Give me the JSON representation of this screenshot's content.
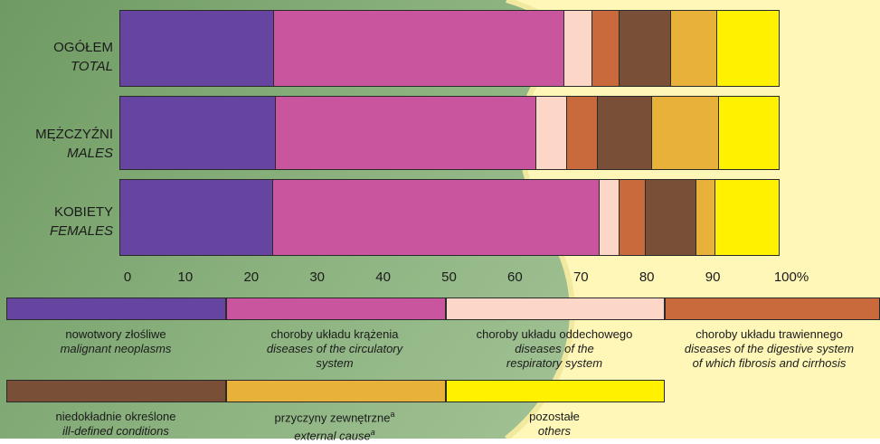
{
  "chart_data": {
    "type": "bar",
    "orientation": "horizontal",
    "stacked": true,
    "categories": [
      {
        "pl": "OGÓŁEM",
        "en": "TOTAL"
      },
      {
        "pl": "MĘŻCZYŹNI",
        "en": "MALES"
      },
      {
        "pl": "KOBIETY",
        "en": "FEMALES"
      }
    ],
    "x_ticks": [
      "0",
      "10",
      "20",
      "30",
      "40",
      "50",
      "60",
      "70",
      "80",
      "90",
      "100%"
    ],
    "xlim": [
      0,
      100
    ],
    "series": [
      {
        "pl": "nowotwory złośliwe",
        "en": "malignant neoplasms",
        "color": "#6645a0",
        "values": [
          23.3,
          23.6,
          23.1
        ]
      },
      {
        "pl": "choroby układu krążenia",
        "en": "diseases of the circulatory system",
        "color": "#c9559f",
        "values": [
          44.1,
          39.5,
          49.2
        ]
      },
      {
        "pl": "choroby układu oddechowego",
        "en": "diseases of the respiratory system",
        "color": "#fcd7c7",
        "values": [
          4.2,
          4.7,
          3.1
        ]
      },
      {
        "pl": "choroby układu trawiennego",
        "en": "diseases of the digestive system of which fibrosis and cirrhosis",
        "color": "#c86a3c",
        "values": [
          4.1,
          4.6,
          3.9
        ]
      },
      {
        "pl": "niedokładnie określone",
        "en": "ill-defined conditions",
        "color": "#7a4f37",
        "values": [
          7.8,
          8.2,
          7.7
        ]
      },
      {
        "pl": "przyczyny zewnętrzne",
        "pl_sup": "a",
        "en": "external cause",
        "en_sup": "a",
        "color": "#e8b23a",
        "values": [
          7.1,
          10.2,
          2.8
        ]
      },
      {
        "pl": "pozostałe",
        "en": "others",
        "color": "#fff100",
        "values": [
          9.4,
          9.2,
          9.7
        ]
      }
    ]
  }
}
